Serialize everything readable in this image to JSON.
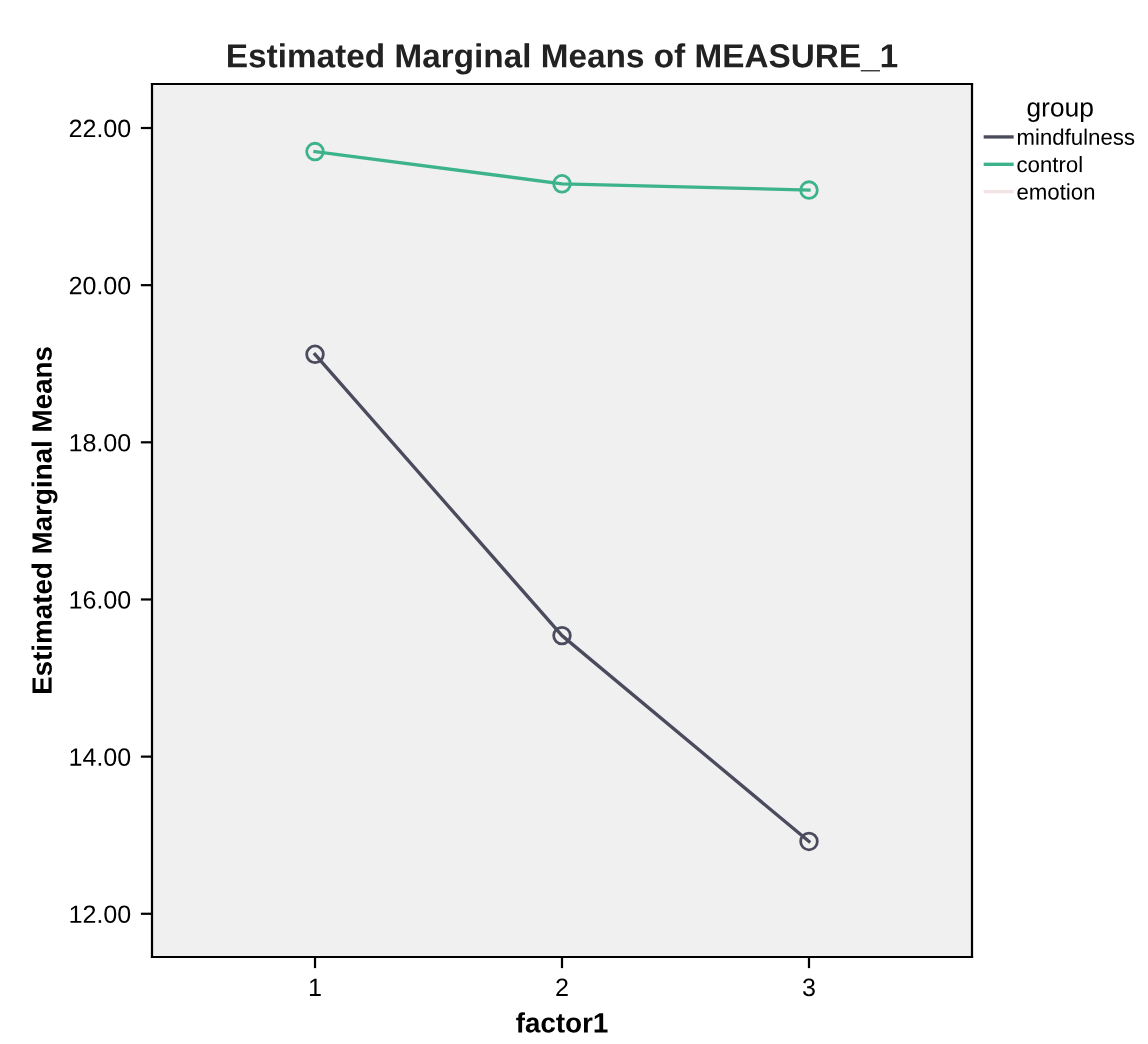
{
  "chart_data": {
    "type": "line",
    "title": "Estimated Marginal Means of MEASURE_1",
    "xlabel": "factor1",
    "ylabel": "Estimated Marginal Means",
    "legend_title": "group",
    "x": [
      1,
      2,
      3
    ],
    "xlim": [
      0.34,
      3.66
    ],
    "xticks": [
      1,
      2,
      3
    ],
    "ylim": [
      11.45,
      22.56
    ],
    "yticks": [
      {
        "value": 12,
        "label": "12.00"
      },
      {
        "value": 14,
        "label": "14.00"
      },
      {
        "value": 16,
        "label": "16.00"
      },
      {
        "value": 18,
        "label": "18.00"
      },
      {
        "value": 20,
        "label": "20.00"
      },
      {
        "value": 22,
        "label": "22.00"
      }
    ],
    "series": [
      {
        "name": "mindfulness",
        "color": "#4b4b5e",
        "values": [
          19.12,
          15.54,
          12.92
        ]
      },
      {
        "name": "control",
        "color": "#3cb38a",
        "values": [
          21.7,
          21.29,
          21.21
        ]
      },
      {
        "name": "emotion",
        "color": "#f2e4e4",
        "values": [
          null,
          null,
          null
        ]
      }
    ],
    "marker": "circle",
    "line_style": "solid",
    "grid": false,
    "legend": "right"
  }
}
